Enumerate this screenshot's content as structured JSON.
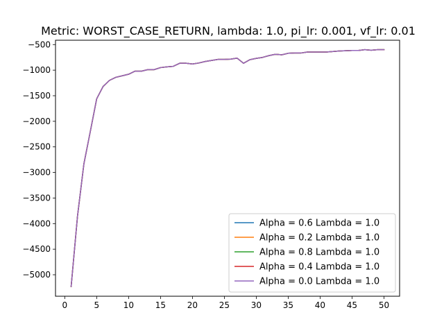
{
  "chart_data": {
    "type": "line",
    "title": "Metric: WORST_CASE_RETURN, lambda: 1.0, pi_lr: 0.001, vf_lr: 0.01",
    "xlabel": "",
    "ylabel": "",
    "xlim": [
      -1.45,
      52.45
    ],
    "ylim": [
      -5420,
      -415
    ],
    "xticks": [
      0,
      5,
      10,
      15,
      20,
      25,
      30,
      35,
      40,
      45,
      50
    ],
    "yticks": [
      -5000,
      -4500,
      -4000,
      -3500,
      -3000,
      -2500,
      -2000,
      -1500,
      -1000,
      -500
    ],
    "grid": false,
    "legend_position": "lower right",
    "x": [
      1,
      2,
      3,
      4,
      5,
      6,
      7,
      8,
      9,
      10,
      11,
      12,
      13,
      14,
      15,
      16,
      17,
      18,
      19,
      20,
      21,
      22,
      23,
      24,
      25,
      26,
      27,
      28,
      29,
      30,
      31,
      32,
      33,
      34,
      35,
      36,
      37,
      38,
      39,
      40,
      41,
      42,
      43,
      44,
      45,
      46,
      47,
      48,
      49,
      50
    ],
    "series": [
      {
        "name": "Alpha = 0.6  Lambda = 1.0",
        "color": "#1f77b4",
        "values": [
          -5230,
          -3850,
          -2830,
          -2200,
          -1560,
          -1320,
          -1200,
          -1140,
          -1110,
          -1080,
          -1020,
          -1020,
          -990,
          -990,
          -950,
          -935,
          -925,
          -865,
          -865,
          -880,
          -860,
          -830,
          -810,
          -790,
          -790,
          -785,
          -765,
          -865,
          -795,
          -770,
          -750,
          -715,
          -690,
          -700,
          -670,
          -665,
          -665,
          -645,
          -645,
          -645,
          -645,
          -635,
          -625,
          -620,
          -615,
          -615,
          -600,
          -610,
          -600,
          -600
        ]
      },
      {
        "name": "Alpha = 0.2  Lambda = 1.0",
        "color": "#ff7f0e",
        "values": [
          -5230,
          -3850,
          -2830,
          -2200,
          -1560,
          -1320,
          -1200,
          -1140,
          -1110,
          -1080,
          -1020,
          -1020,
          -990,
          -990,
          -950,
          -935,
          -925,
          -865,
          -865,
          -880,
          -860,
          -830,
          -810,
          -790,
          -790,
          -785,
          -765,
          -865,
          -795,
          -770,
          -750,
          -715,
          -690,
          -700,
          -670,
          -665,
          -665,
          -645,
          -645,
          -645,
          -645,
          -635,
          -625,
          -620,
          -615,
          -615,
          -600,
          -610,
          -600,
          -600
        ]
      },
      {
        "name": "Alpha = 0.8  Lambda = 1.0",
        "color": "#2ca02c",
        "values": [
          -5230,
          -3850,
          -2830,
          -2200,
          -1560,
          -1320,
          -1200,
          -1140,
          -1110,
          -1080,
          -1020,
          -1020,
          -990,
          -990,
          -950,
          -935,
          -925,
          -865,
          -865,
          -880,
          -860,
          -830,
          -810,
          -790,
          -790,
          -785,
          -765,
          -865,
          -795,
          -770,
          -750,
          -715,
          -690,
          -700,
          -670,
          -665,
          -665,
          -645,
          -645,
          -645,
          -645,
          -635,
          -625,
          -620,
          -615,
          -615,
          -600,
          -610,
          -600,
          -600
        ]
      },
      {
        "name": "Alpha = 0.4  Lambda = 1.0",
        "color": "#d62728",
        "values": [
          -5230,
          -3850,
          -2830,
          -2200,
          -1560,
          -1320,
          -1200,
          -1140,
          -1110,
          -1080,
          -1020,
          -1020,
          -990,
          -990,
          -950,
          -935,
          -925,
          -865,
          -865,
          -880,
          -860,
          -830,
          -810,
          -790,
          -790,
          -785,
          -765,
          -865,
          -795,
          -770,
          -750,
          -715,
          -690,
          -700,
          -670,
          -665,
          -665,
          -645,
          -645,
          -645,
          -645,
          -635,
          -625,
          -620,
          -615,
          -615,
          -600,
          -610,
          -600,
          -600
        ]
      },
      {
        "name": "Alpha = 0.0  Lambda = 1.0",
        "color": "#9467bd",
        "values": [
          -5230,
          -3850,
          -2830,
          -2200,
          -1560,
          -1320,
          -1200,
          -1140,
          -1110,
          -1080,
          -1020,
          -1020,
          -990,
          -990,
          -950,
          -935,
          -925,
          -865,
          -865,
          -880,
          -860,
          -830,
          -810,
          -790,
          -790,
          -785,
          -765,
          -865,
          -795,
          -770,
          -750,
          -715,
          -690,
          -700,
          -670,
          -665,
          -665,
          -645,
          -645,
          -645,
          -645,
          -635,
          -625,
          -620,
          -615,
          -615,
          -600,
          -610,
          -600,
          -600
        ]
      }
    ]
  }
}
